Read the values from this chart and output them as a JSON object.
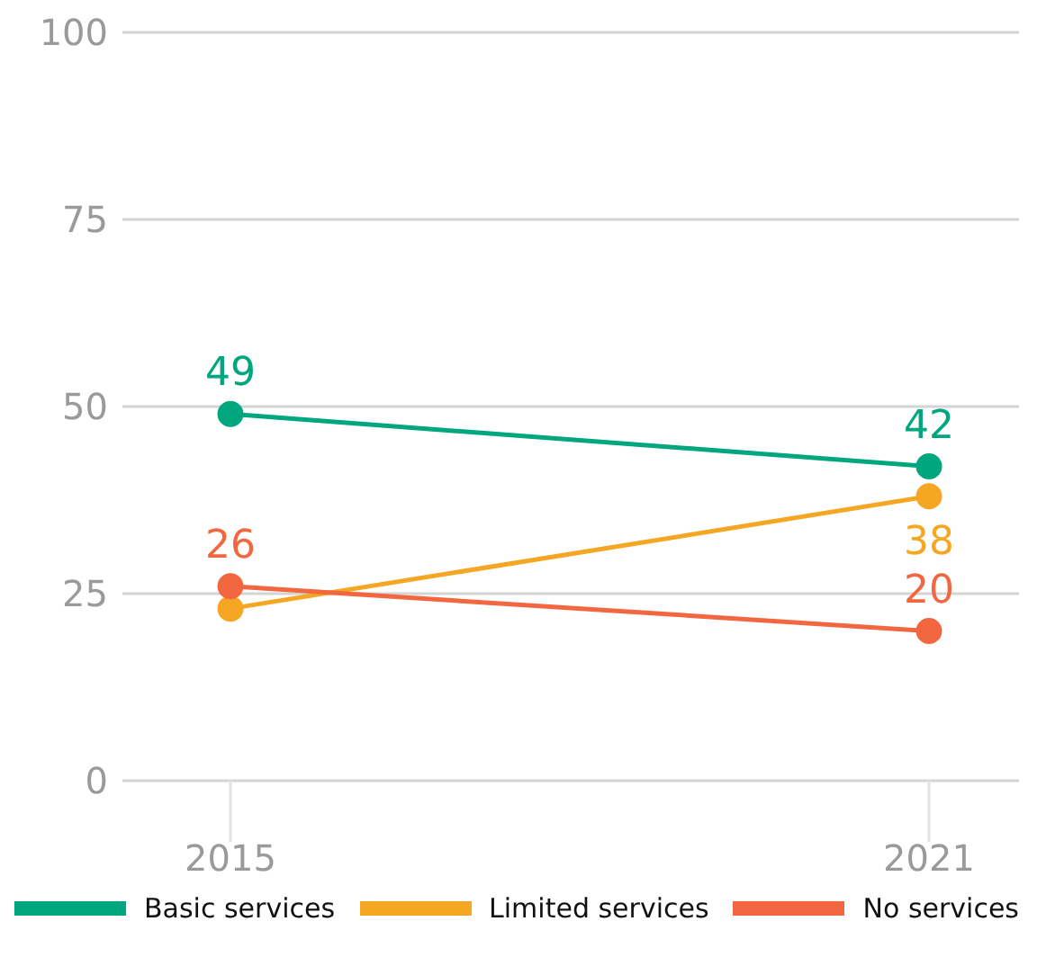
{
  "chart_data": {
    "type": "line",
    "categories": [
      "2015",
      "2021"
    ],
    "series": [
      {
        "name": "Basic services",
        "color": "#00a67e",
        "values": [
          49,
          42
        ],
        "value_labels": [
          "49",
          "42"
        ]
      },
      {
        "name": "Limited services",
        "color": "#f5a623",
        "values": [
          23,
          38
        ],
        "value_labels": [
          null,
          "38"
        ]
      },
      {
        "name": "No services",
        "color": "#f26640",
        "values": [
          26,
          20
        ],
        "value_labels": [
          "26",
          "20"
        ]
      }
    ],
    "ylim": [
      0,
      100
    ],
    "yticks": [
      0,
      25,
      50,
      75,
      100
    ],
    "grid": "y",
    "legend": "bottom",
    "marker": "circle",
    "line_style": "solid"
  }
}
